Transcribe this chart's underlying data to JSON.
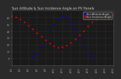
{
  "title": "Sun Altitude & Sun Incidence Angle on PV Panels",
  "legend_labels": [
    "Sun Altitude Angle",
    "Sun Incidence Angle"
  ],
  "legend_colors": [
    "#0000dd",
    "#dd0000"
  ],
  "background_color": "#2a2a2a",
  "plot_bg": "#1a1a1a",
  "grid_color": "#555555",
  "blue_x": [
    5,
    6,
    7,
    8,
    9,
    10,
    11,
    12,
    13,
    14,
    15,
    16,
    17,
    18,
    19
  ],
  "blue_y": [
    2,
    8,
    18,
    28,
    40,
    50,
    58,
    62,
    60,
    53,
    42,
    30,
    18,
    8,
    2
  ],
  "red_x": [
    0,
    1,
    2,
    3,
    4,
    5,
    6,
    7,
    8,
    9,
    10,
    11,
    12,
    13,
    14,
    15,
    16,
    17,
    18,
    19,
    20,
    21,
    22,
    23,
    24
  ],
  "red_y": [
    62,
    60,
    57,
    53,
    48,
    43,
    37,
    32,
    27,
    22,
    18,
    16,
    17,
    19,
    23,
    28,
    34,
    40,
    47,
    53,
    57,
    60,
    62,
    63,
    63
  ],
  "ylim": [
    -10,
    70
  ],
  "xlim": [
    0,
    24
  ],
  "ytick_values": [
    0,
    10,
    20,
    30,
    40,
    50,
    60
  ],
  "xtick_positions": [
    0,
    2,
    4,
    6,
    8,
    10,
    12,
    14,
    16,
    18,
    20,
    22,
    24
  ],
  "xtick_labels": [
    "4/1",
    "4/3",
    "4/5",
    "4/7",
    "4/9",
    "4/11",
    "4/13",
    "4/15",
    "4/17",
    "4/19",
    "4/21",
    "4/23",
    "4/25"
  ],
  "marker_size": 1.5,
  "title_fontsize": 3.5,
  "tick_fontsize": 2.5,
  "legend_fontsize": 2.5
}
